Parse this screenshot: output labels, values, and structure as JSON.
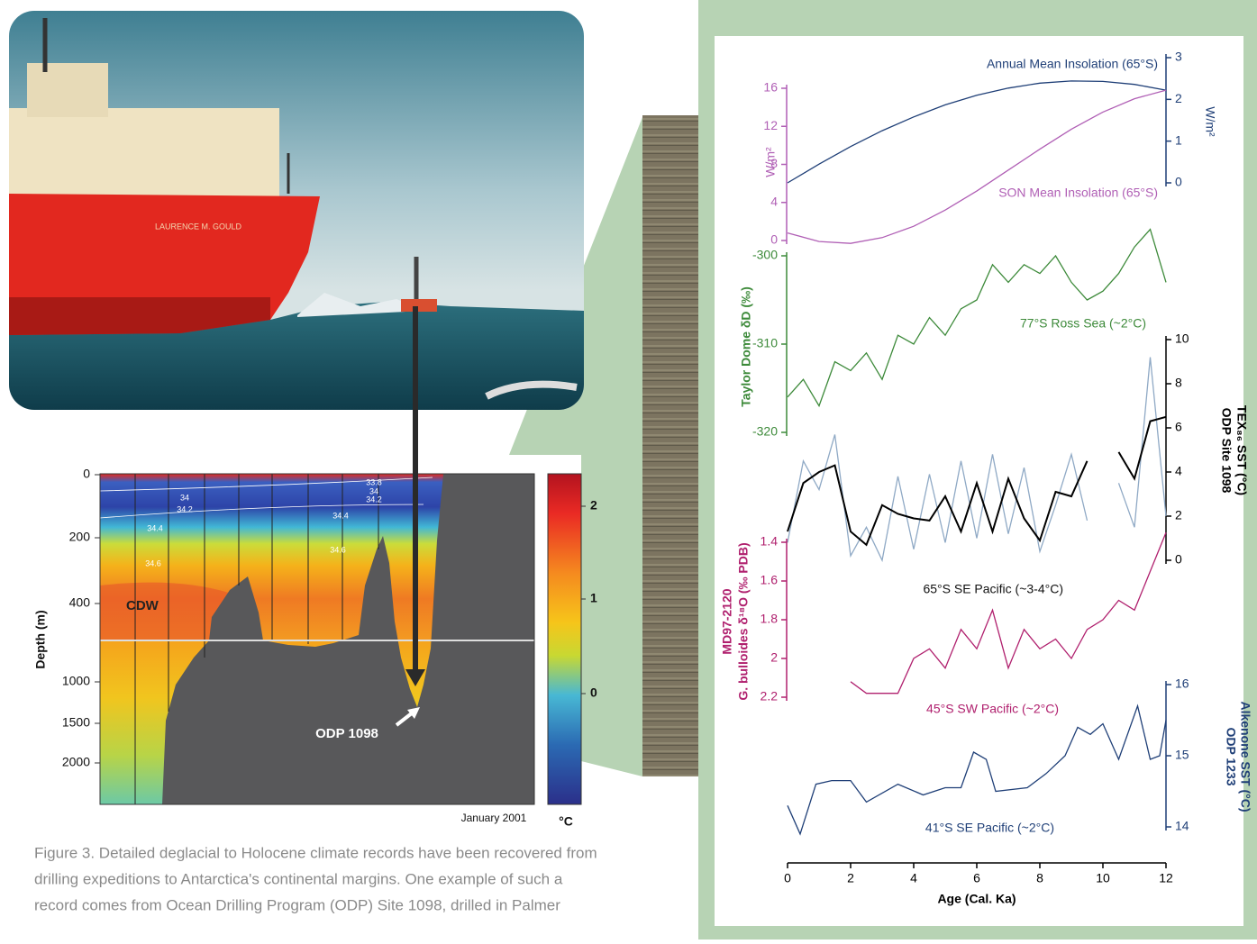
{
  "photo": {
    "ship_name": "LAURENCE M. GOULD"
  },
  "section": {
    "depth_label": "Depth (m)",
    "depth_ticks": [
      0,
      200,
      400,
      1000,
      1500,
      2000
    ],
    "contours": [
      33.8,
      34,
      34.2,
      34,
      34.2,
      34.4,
      34.4,
      34.6,
      34.6
    ],
    "water_mass": "CDW",
    "site": "ODP 1098",
    "date": "January 2001",
    "colorbar_ticks": [
      2,
      1,
      0
    ],
    "colorbar_unit": "°C"
  },
  "caption": [
    "Figure 3. Detailed deglacial to Holocene climate records have been recovered from",
    "drilling expeditions to Antarctica's continental margins. One example of such a",
    "record comes from Ocean Drilling Program (ODP) Site 1098, drilled in Palmer"
  ],
  "chart_data": [
    {
      "type": "line",
      "axis_side": "left",
      "axis_color": "#b05fb5",
      "y2_axis_color": "#1f3f77",
      "y_label": [
        "W/m²"
      ],
      "y2_label": [
        "W/m²"
      ],
      "ylim": [
        0,
        16
      ],
      "yticks": [
        0,
        4,
        8,
        12,
        16
      ],
      "y2lim": [
        0,
        3
      ],
      "y2ticks": [
        0,
        1,
        2,
        3
      ],
      "annotations": [
        "Annual Mean Insolation (65°S)",
        "SON Mean Insolation (65°S)"
      ],
      "series": [
        {
          "color": "#1f3f77",
          "axis": "y2",
          "x": [
            0,
            1,
            2,
            3,
            4,
            5,
            6,
            7,
            8,
            9,
            10,
            11,
            12
          ],
          "values": [
            0,
            0.45,
            0.87,
            1.25,
            1.58,
            1.87,
            2.1,
            2.27,
            2.39,
            2.44,
            2.43,
            2.36,
            2.22
          ]
        },
        {
          "color": "#b05fb5",
          "x": [
            0,
            1,
            2,
            3,
            4,
            5,
            6,
            7,
            8,
            9,
            10,
            11,
            12
          ],
          "values": [
            0.8,
            -0.1,
            -0.3,
            0.3,
            1.5,
            3.2,
            5.2,
            7.4,
            9.6,
            11.7,
            13.5,
            14.9,
            15.8
          ]
        }
      ]
    },
    {
      "type": "line",
      "axis_side": "left",
      "axis_color": "#3d8a3a",
      "y_label": [
        "Taylor Dome δD (‰)"
      ],
      "ylim": [
        -320,
        -300
      ],
      "yticks": [
        -300,
        -310,
        -320
      ],
      "annotations": [
        "77°S Ross Sea (~2°C)"
      ],
      "series": [
        {
          "color": "#3d8a3a",
          "x": [
            0,
            0.5,
            1,
            1.5,
            2,
            2.5,
            3,
            3.5,
            4,
            4.5,
            5,
            5.5,
            6,
            6.5,
            7,
            7.5,
            8,
            8.5,
            9,
            9.5,
            10,
            10.5,
            11,
            11.5,
            12
          ],
          "values": [
            -316,
            -314,
            -317,
            -312,
            -313,
            -311,
            -314,
            -309,
            -310,
            -307,
            -309,
            -306,
            -305,
            -301,
            -303,
            -301,
            -302,
            -300,
            -303,
            -305,
            -304,
            -302,
            -299,
            -297,
            -303
          ]
        }
      ]
    },
    {
      "type": "line",
      "axis_side": "right",
      "axis_color": "#000000",
      "y_label": [
        "ODP Site 1098",
        "TEX₈₆ SST (°C)"
      ],
      "ylim": [
        0,
        10
      ],
      "yticks": [
        0,
        2,
        4,
        6,
        8,
        10
      ],
      "annotations": [
        "65°S SE Pacific (~3-4°C)"
      ],
      "series": [
        {
          "color": "#8fa9c5",
          "x": [
            0,
            0.5,
            1,
            1.5,
            2,
            2.5,
            3,
            3.5,
            4,
            4.5,
            5,
            5.5,
            6,
            6.5,
            7,
            7.5,
            8,
            8.5,
            9,
            9.5,
            10,
            10.5,
            11,
            11.5,
            12
          ],
          "values": [
            0.8,
            4.5,
            3.2,
            5.7,
            0.2,
            1.5,
            0,
            3.8,
            0.5,
            3.9,
            0.8,
            4.5,
            1,
            4.8,
            1.2,
            4.2,
            0.4,
            2.5,
            4.8,
            1.8,
            null,
            3.5,
            1.5,
            9.2,
            2
          ]
        },
        {
          "color": "#000000",
          "x": [
            0,
            0.5,
            1,
            1.5,
            2,
            2.5,
            3,
            3.5,
            4,
            4.5,
            5,
            5.5,
            6,
            6.5,
            7,
            7.5,
            8,
            8.5,
            9,
            9.5,
            10,
            10.5,
            11,
            11.5,
            12
          ],
          "values": [
            1.3,
            3.5,
            4.0,
            4.3,
            1.3,
            0.7,
            2.5,
            2.1,
            1.9,
            1.8,
            2.9,
            1.3,
            3.5,
            1.3,
            3.7,
            1.9,
            0.9,
            3.1,
            2.9,
            4.5,
            null,
            4.9,
            3.7,
            6.3,
            6.5
          ]
        }
      ]
    },
    {
      "type": "line",
      "axis_side": "left",
      "axis_color": "#b0206e",
      "y_label": [
        "MD97-2120",
        "G. bulloides δ¹⁸O (‰ PDB)"
      ],
      "ylim": [
        2.2,
        1.4
      ],
      "yticks": [
        1.4,
        1.6,
        1.8,
        2.0,
        2.2
      ],
      "annotations": [
        "45°S SW Pacific (~2°C)"
      ],
      "series": [
        {
          "color": "#b0206e",
          "x": [
            2,
            2.5,
            3,
            3.5,
            4,
            4.5,
            5,
            5.5,
            6,
            6.5,
            7,
            7.5,
            8,
            8.5,
            9,
            9.5,
            10,
            10.5,
            11,
            11.5,
            12
          ],
          "values": [
            2.12,
            2.18,
            2.18,
            2.18,
            2.0,
            1.95,
            2.05,
            1.85,
            1.95,
            1.75,
            2.05,
            1.85,
            1.95,
            1.9,
            2.0,
            1.85,
            1.8,
            1.7,
            1.75,
            1.55,
            1.35
          ]
        }
      ]
    },
    {
      "type": "line",
      "axis_side": "right",
      "axis_color": "#1f3f77",
      "y_label": [
        "ODP 1233",
        "Alkenone SST (°C)"
      ],
      "ylim": [
        14,
        16
      ],
      "yticks": [
        14,
        15,
        16
      ],
      "xlim": [
        0,
        12
      ],
      "xticks": [
        0,
        2,
        4,
        6,
        8,
        10,
        12
      ],
      "x_label": "Age (Cal. Ka)",
      "annotations": [
        "41°S SE Pacific (~2°C)"
      ],
      "series": [
        {
          "color": "#1f3f77",
          "x": [
            0,
            0.4,
            0.9,
            1.4,
            2,
            2.5,
            3.5,
            4.3,
            5,
            5.5,
            5.9,
            6.3,
            6.6,
            7.6,
            8.2,
            8.8,
            9.2,
            9.6,
            10,
            10.5,
            11.1,
            11.5,
            11.8,
            12
          ],
          "values": [
            14.3,
            13.9,
            14.6,
            14.65,
            14.65,
            14.35,
            14.6,
            14.45,
            14.55,
            14.55,
            15.05,
            14.95,
            14.5,
            14.55,
            14.75,
            15.0,
            15.4,
            15.3,
            15.45,
            14.95,
            15.7,
            14.95,
            15.0,
            15.5
          ]
        }
      ]
    }
  ]
}
